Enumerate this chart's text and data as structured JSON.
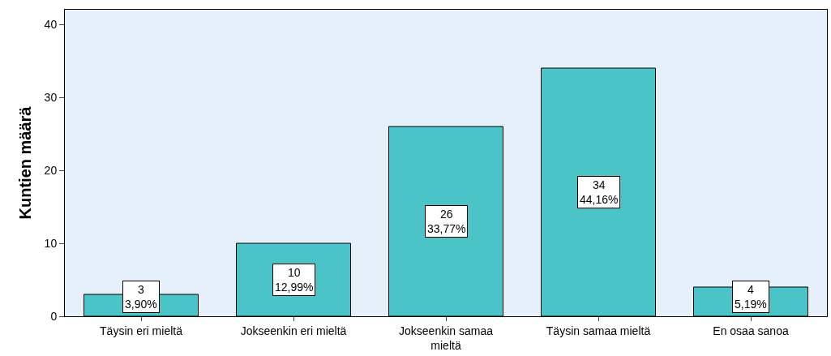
{
  "chart_data": {
    "type": "bar",
    "ylabel": "Kuntien määrä",
    "categories": [
      "Täysin eri mieltä",
      "Jokseenkin eri mieltä",
      "Jokseenkin samaa mieltä",
      "Täysin samaa mieltä",
      "En osaa sanoa"
    ],
    "values": [
      3,
      10,
      26,
      34,
      4
    ],
    "value_labels": [
      "3\n3,90%",
      "10\n12,99%",
      "26\n33,77%",
      "34\n44,16%",
      "4\n5,19%"
    ],
    "color": "#4bc4c8",
    "ylim": [
      0,
      42
    ],
    "yticks": [
      0,
      10,
      20,
      30,
      40
    ],
    "grid": false,
    "legend": false
  }
}
